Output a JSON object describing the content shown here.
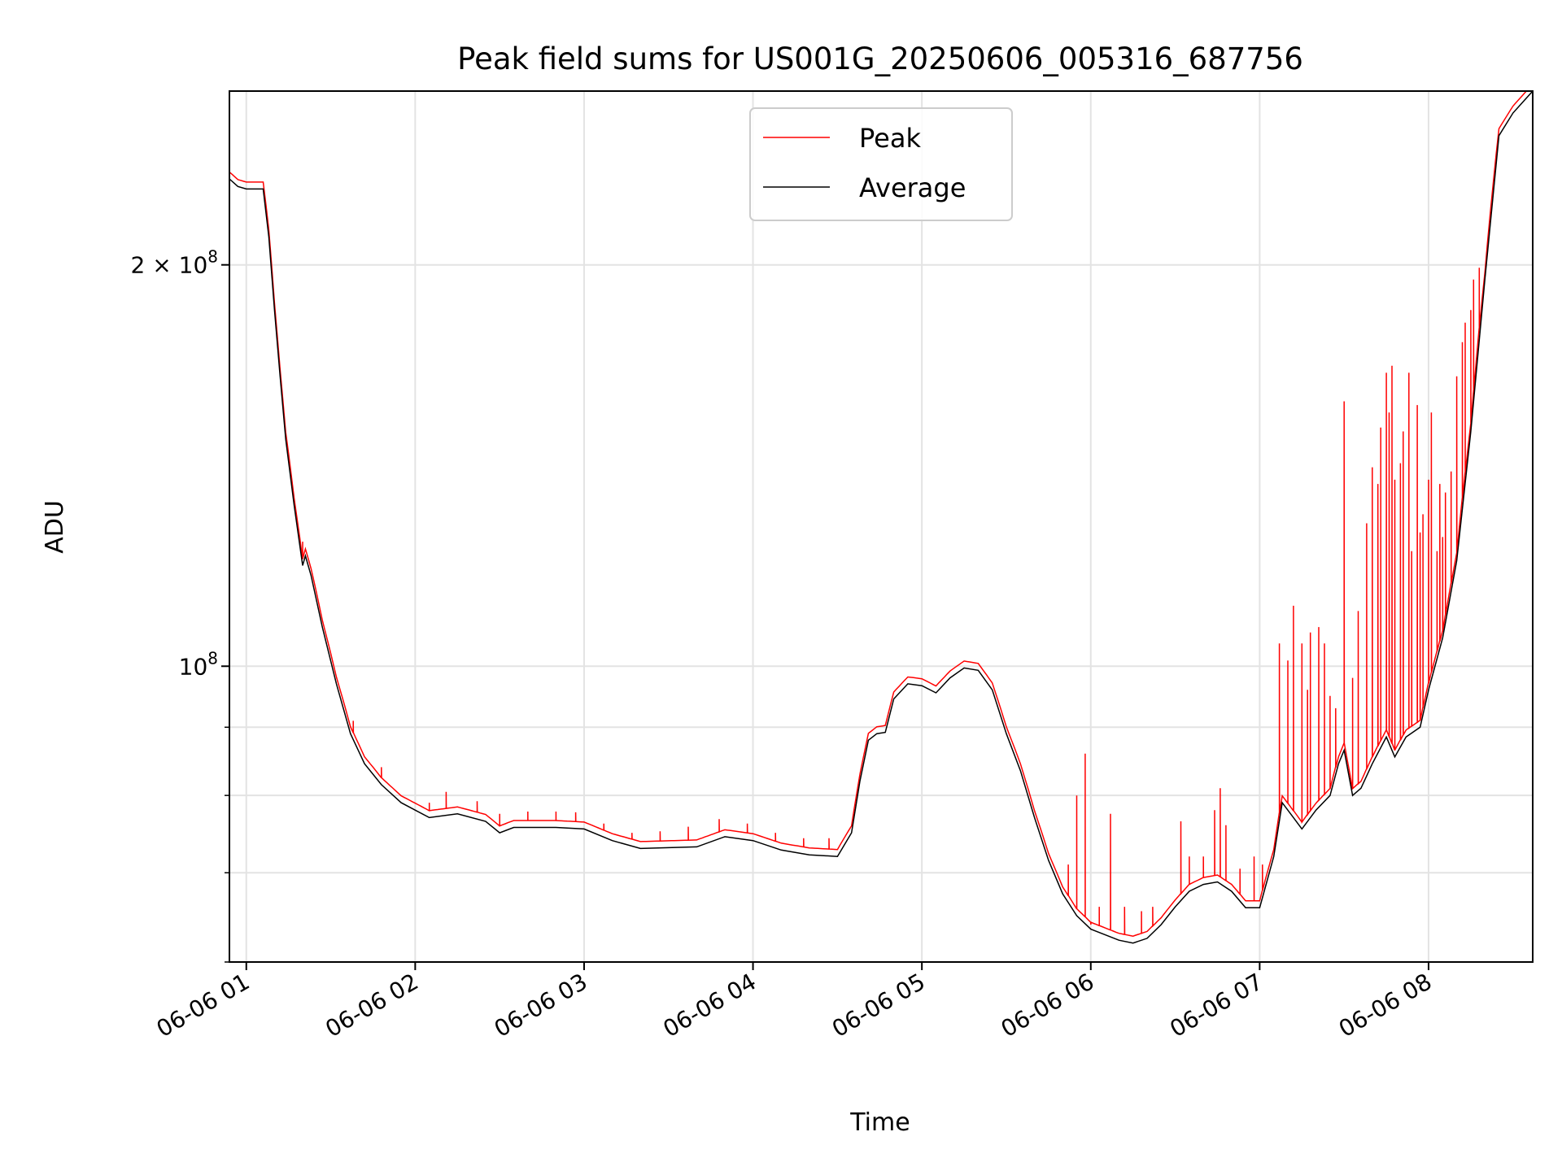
{
  "chart_data": {
    "type": "line",
    "title": "Peak field sums for US001G_20250606_005316_687756",
    "xlabel": "Time",
    "ylabel": "ADU",
    "yscale": "log",
    "ylim": [
      60000000,
      270000000
    ],
    "xlim": [
      "2025-06-06 00:54",
      "2025-06-06 08:37"
    ],
    "grid": true,
    "legend": {
      "position": "top-center",
      "entries": [
        "Peak",
        "Average"
      ]
    },
    "x_ticks": [
      "06-06 01",
      "06-06 02",
      "06-06 03",
      "06-06 04",
      "06-06 05",
      "06-06 06",
      "06-06 07",
      "06-06 08"
    ],
    "y_major_ticks": [
      {
        "value": 100000000,
        "mantissa": "",
        "base": "10",
        "exponent": "8"
      },
      {
        "value": 200000000,
        "mantissa": "2 × ",
        "base": "10",
        "exponent": "8"
      }
    ],
    "y_minor_ticks": [
      60000000,
      70000000,
      80000000,
      90000000
    ],
    "colors": {
      "Peak": "#ff0000",
      "Average": "#000000"
    },
    "series": [
      {
        "name": "Average",
        "color": "#000000",
        "points": [
          [
            "2025-06-06 00:54",
            232000000
          ],
          [
            "2025-06-06 00:57",
            229000000
          ],
          [
            "2025-06-06 01:00",
            228000000
          ],
          [
            "2025-06-06 01:06",
            228000000
          ],
          [
            "2025-06-06 01:08",
            210000000
          ],
          [
            "2025-06-06 01:10",
            185000000
          ],
          [
            "2025-06-06 01:12",
            165000000
          ],
          [
            "2025-06-06 01:14",
            148000000
          ],
          [
            "2025-06-06 01:17",
            132000000
          ],
          [
            "2025-06-06 01:20",
            119000000
          ],
          [
            "2025-06-06 01:21",
            121000000
          ],
          [
            "2025-06-06 01:23",
            117000000
          ],
          [
            "2025-06-06 01:27",
            107000000
          ],
          [
            "2025-06-06 01:32",
            97000000
          ],
          [
            "2025-06-06 01:37",
            89000000
          ],
          [
            "2025-06-06 01:42",
            84500000
          ],
          [
            "2025-06-06 01:48",
            81500000
          ],
          [
            "2025-06-06 01:55",
            79000000
          ],
          [
            "2025-06-06 02:05",
            77000000
          ],
          [
            "2025-06-06 02:15",
            77500000
          ],
          [
            "2025-06-06 02:25",
            76500000
          ],
          [
            "2025-06-06 02:30",
            75000000
          ],
          [
            "2025-06-06 02:35",
            75700000
          ],
          [
            "2025-06-06 02:50",
            75700000
          ],
          [
            "2025-06-06 03:00",
            75500000
          ],
          [
            "2025-06-06 03:10",
            74000000
          ],
          [
            "2025-06-06 03:20",
            73000000
          ],
          [
            "2025-06-06 03:40",
            73200000
          ],
          [
            "2025-06-06 03:50",
            74500000
          ],
          [
            "2025-06-06 04:00",
            74000000
          ],
          [
            "2025-06-06 04:10",
            72800000
          ],
          [
            "2025-06-06 04:20",
            72200000
          ],
          [
            "2025-06-06 04:30",
            72000000
          ],
          [
            "2025-06-06 04:35",
            75000000
          ],
          [
            "2025-06-06 04:38",
            82000000
          ],
          [
            "2025-06-06 04:41",
            88000000
          ],
          [
            "2025-06-06 04:44",
            89000000
          ],
          [
            "2025-06-06 04:47",
            89200000
          ],
          [
            "2025-06-06 04:50",
            94500000
          ],
          [
            "2025-06-06 04:55",
            97000000
          ],
          [
            "2025-06-06 05:00",
            96700000
          ],
          [
            "2025-06-06 05:05",
            95500000
          ],
          [
            "2025-06-06 05:10",
            98000000
          ],
          [
            "2025-06-06 05:15",
            99700000
          ],
          [
            "2025-06-06 05:20",
            99300000
          ],
          [
            "2025-06-06 05:25",
            96000000
          ],
          [
            "2025-06-06 05:30",
            89000000
          ],
          [
            "2025-06-06 05:35",
            83500000
          ],
          [
            "2025-06-06 05:40",
            77000000
          ],
          [
            "2025-06-06 05:45",
            71500000
          ],
          [
            "2025-06-06 05:50",
            67500000
          ],
          [
            "2025-06-06 05:55",
            65000000
          ],
          [
            "2025-06-06 06:00",
            63500000
          ],
          [
            "2025-06-06 06:10",
            62300000
          ],
          [
            "2025-06-06 06:15",
            62000000
          ],
          [
            "2025-06-06 06:20",
            62500000
          ],
          [
            "2025-06-06 06:25",
            64000000
          ],
          [
            "2025-06-06 06:30",
            66000000
          ],
          [
            "2025-06-06 06:35",
            67800000
          ],
          [
            "2025-06-06 06:40",
            68600000
          ],
          [
            "2025-06-06 06:45",
            68900000
          ],
          [
            "2025-06-06 06:50",
            67800000
          ],
          [
            "2025-06-06 06:55",
            65900000
          ],
          [
            "2025-06-06 07:00",
            65900000
          ],
          [
            "2025-06-06 07:05",
            72000000
          ],
          [
            "2025-06-06 07:08",
            79000000
          ],
          [
            "2025-06-06 07:12",
            77000000
          ],
          [
            "2025-06-06 07:15",
            75500000
          ],
          [
            "2025-06-06 07:20",
            78000000
          ],
          [
            "2025-06-06 07:25",
            80000000
          ],
          [
            "2025-06-06 07:28",
            84500000
          ],
          [
            "2025-06-06 07:30",
            86500000
          ],
          [
            "2025-06-06 07:33",
            80000000
          ],
          [
            "2025-06-06 07:36",
            81000000
          ],
          [
            "2025-06-06 07:40",
            84500000
          ],
          [
            "2025-06-06 07:45",
            88500000
          ],
          [
            "2025-06-06 07:48",
            85500000
          ],
          [
            "2025-06-06 07:52",
            88500000
          ],
          [
            "2025-06-06 07:57",
            90000000
          ],
          [
            "2025-06-06 08:00",
            96000000
          ],
          [
            "2025-06-06 08:05",
            105000000
          ],
          [
            "2025-06-06 08:10",
            120000000
          ],
          [
            "2025-06-06 08:15",
            150000000
          ],
          [
            "2025-06-06 08:20",
            195000000
          ],
          [
            "2025-06-06 08:25",
            250000000
          ],
          [
            "2025-06-06 08:30",
            260000000
          ],
          [
            "2025-06-06 08:37",
            270000000
          ]
        ]
      },
      {
        "name": "Peak",
        "color": "#ff0000",
        "follows": "Average",
        "spikes": [
          [
            "2025-06-06 01:20",
            124000000
          ],
          [
            "2025-06-06 01:38",
            91000000
          ],
          [
            "2025-06-06 01:48",
            84000000
          ],
          [
            "2025-06-06 02:05",
            79000000
          ],
          [
            "2025-06-06 02:11",
            80500000
          ],
          [
            "2025-06-06 02:22",
            79200000
          ],
          [
            "2025-06-06 02:30",
            77500000
          ],
          [
            "2025-06-06 02:40",
            77800000
          ],
          [
            "2025-06-06 02:50",
            77800000
          ],
          [
            "2025-06-06 02:57",
            77700000
          ],
          [
            "2025-06-06 03:07",
            76200000
          ],
          [
            "2025-06-06 03:17",
            75000000
          ],
          [
            "2025-06-06 03:27",
            75200000
          ],
          [
            "2025-06-06 03:37",
            75800000
          ],
          [
            "2025-06-06 03:48",
            76800000
          ],
          [
            "2025-06-06 03:58",
            76200000
          ],
          [
            "2025-06-06 04:08",
            75000000
          ],
          [
            "2025-06-06 04:18",
            74300000
          ],
          [
            "2025-06-06 04:27",
            74300000
          ],
          [
            "2025-06-06 05:52",
            71000000
          ],
          [
            "2025-06-06 05:55",
            80000000
          ],
          [
            "2025-06-06 05:58",
            86000000
          ],
          [
            "2025-06-06 06:00",
            64000000
          ],
          [
            "2025-06-06 06:03",
            66000000
          ],
          [
            "2025-06-06 06:07",
            77500000
          ],
          [
            "2025-06-06 06:12",
            66000000
          ],
          [
            "2025-06-06 06:18",
            65500000
          ],
          [
            "2025-06-06 06:22",
            66000000
          ],
          [
            "2025-06-06 06:32",
            76500000
          ],
          [
            "2025-06-06 06:35",
            72000000
          ],
          [
            "2025-06-06 06:40",
            72000000
          ],
          [
            "2025-06-06 06:44",
            78000000
          ],
          [
            "2025-06-06 06:46",
            81000000
          ],
          [
            "2025-06-06 06:48",
            76000000
          ],
          [
            "2025-06-06 06:53",
            70500000
          ],
          [
            "2025-06-06 06:58",
            72000000
          ],
          [
            "2025-06-06 07:01",
            71000000
          ],
          [
            "2025-06-06 07:07",
            104000000
          ],
          [
            "2025-06-06 07:10",
            101000000
          ],
          [
            "2025-06-06 07:12",
            111000000
          ],
          [
            "2025-06-06 07:15",
            104000000
          ],
          [
            "2025-06-06 07:17",
            96000000
          ],
          [
            "2025-06-06 07:18",
            106000000
          ],
          [
            "2025-06-06 07:21",
            107000000
          ],
          [
            "2025-06-06 07:23",
            104000000
          ],
          [
            "2025-06-06 07:25",
            95000000
          ],
          [
            "2025-06-06 07:27",
            93000000
          ],
          [
            "2025-06-06 07:30",
            158000000
          ],
          [
            "2025-06-06 07:33",
            98000000
          ],
          [
            "2025-06-06 07:35",
            110000000
          ],
          [
            "2025-06-06 07:38",
            128000000
          ],
          [
            "2025-06-06 07:40",
            141000000
          ],
          [
            "2025-06-06 07:42",
            137000000
          ],
          [
            "2025-06-06 07:43",
            151000000
          ],
          [
            "2025-06-06 07:45",
            166000000
          ],
          [
            "2025-06-06 07:46",
            155000000
          ],
          [
            "2025-06-06 07:47",
            168000000
          ],
          [
            "2025-06-06 07:48",
            138000000
          ],
          [
            "2025-06-06 07:50",
            142000000
          ],
          [
            "2025-06-06 07:51",
            150000000
          ],
          [
            "2025-06-06 07:53",
            166000000
          ],
          [
            "2025-06-06 07:54",
            122000000
          ],
          [
            "2025-06-06 07:56",
            157000000
          ],
          [
            "2025-06-06 07:57",
            126000000
          ],
          [
            "2025-06-06 07:58",
            130000000
          ],
          [
            "2025-06-06 08:00",
            138000000
          ],
          [
            "2025-06-06 08:01",
            155000000
          ],
          [
            "2025-06-06 08:03",
            122000000
          ],
          [
            "2025-06-06 08:04",
            137000000
          ],
          [
            "2025-06-06 08:05",
            125000000
          ],
          [
            "2025-06-06 08:06",
            135000000
          ],
          [
            "2025-06-06 08:08",
            140000000
          ],
          [
            "2025-06-06 08:10",
            165000000
          ],
          [
            "2025-06-06 08:12",
            175000000
          ],
          [
            "2025-06-06 08:13",
            181000000
          ],
          [
            "2025-06-06 08:15",
            185000000
          ],
          [
            "2025-06-06 08:16",
            195000000
          ],
          [
            "2025-06-06 08:18",
            199000000
          ]
        ]
      }
    ]
  }
}
